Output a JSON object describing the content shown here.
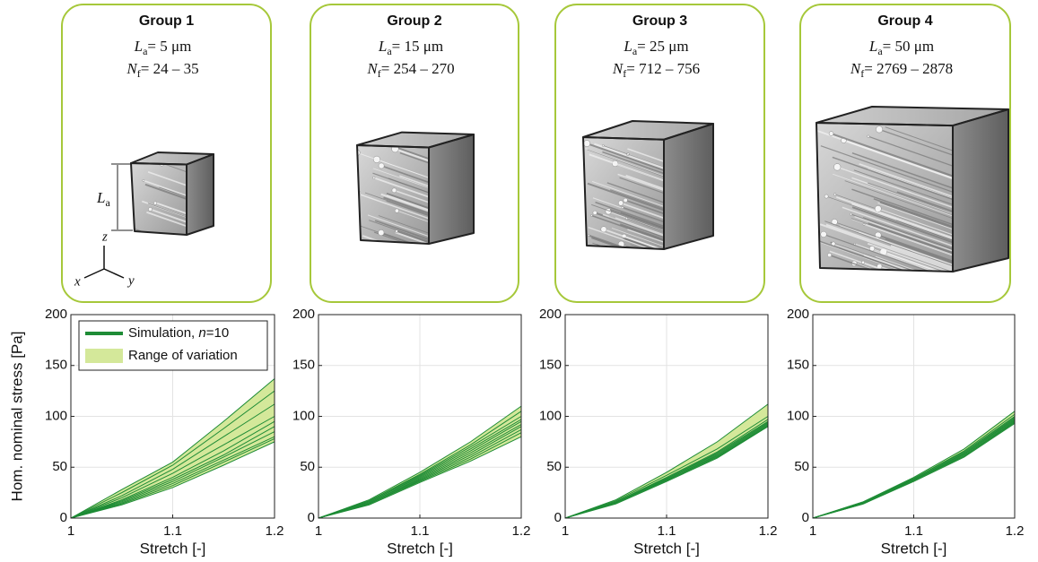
{
  "groups": [
    {
      "title": "Group 1",
      "la_symbol": "L",
      "la_sub": "a",
      "la_value": "= 5 μm",
      "nf_symbol": "N",
      "nf_sub": "f",
      "nf_value": "= 24 – 35"
    },
    {
      "title": "Group 2",
      "la_symbol": "L",
      "la_sub": "a",
      "la_value": "= 15 μm",
      "nf_symbol": "N",
      "nf_sub": "f",
      "nf_value": "= 254 – 270"
    },
    {
      "title": "Group 3",
      "la_symbol": "L",
      "la_sub": "a",
      "la_value": "= 25 μm",
      "nf_symbol": "N",
      "nf_sub": "f",
      "nf_value": "= 712 – 756"
    },
    {
      "title": "Group 4",
      "la_symbol": "L",
      "la_sub": "a",
      "la_value": "= 50 μm",
      "nf_symbol": "N",
      "nf_sub": "f",
      "nf_value": "= 2769 – 2878"
    }
  ],
  "cube_labels": {
    "length_symbol": "L",
    "length_sub": "a",
    "axis_x": "x",
    "axis_y": "y",
    "axis_z": "z"
  },
  "chart_data": [
    {
      "type": "line",
      "ylabel": "Hom. nominal stress [Pa]",
      "xlabel": "Stretch [-]",
      "legend": {
        "simulation": [
          "Simulation, ",
          "n",
          "=10"
        ],
        "range": "Range of variation"
      },
      "line_color": "#1e8c36",
      "band_color": "#d4e89a",
      "xlim": [
        1,
        1.2
      ],
      "xticks": [
        1,
        1.1,
        1.2
      ],
      "ylim": [
        0,
        200
      ],
      "yticks": [
        0,
        50,
        100,
        150,
        200
      ],
      "grid": true,
      "x": [
        1,
        1.05,
        1.1,
        1.15,
        1.2
      ],
      "range": {
        "lower": [
          0,
          13,
          30,
          52,
          75
        ],
        "upper": [
          0,
          28,
          55,
          95,
          137
        ]
      },
      "curves": [
        [
          0,
          28,
          55,
          95,
          137
        ],
        [
          0,
          25,
          52,
          88,
          125
        ],
        [
          0,
          22,
          48,
          80,
          112
        ],
        [
          0,
          20,
          44,
          72,
          100
        ],
        [
          0,
          18,
          40,
          66,
          95
        ],
        [
          0,
          17,
          38,
          62,
          90
        ],
        [
          0,
          16,
          36,
          60,
          85
        ],
        [
          0,
          15,
          34,
          57,
          80
        ],
        [
          0,
          14,
          32,
          55,
          78
        ],
        [
          0,
          13,
          30,
          52,
          75
        ]
      ]
    },
    {
      "type": "line",
      "xlabel": "Stretch [-]",
      "line_color": "#1e8c36",
      "band_color": "#d4e89a",
      "xlim": [
        1,
        1.2
      ],
      "xticks": [
        1,
        1.1,
        1.2
      ],
      "ylim": [
        0,
        200
      ],
      "yticks": [
        0,
        50,
        100,
        150,
        200
      ],
      "grid": true,
      "x": [
        1,
        1.05,
        1.1,
        1.15,
        1.2
      ],
      "range": {
        "lower": [
          0,
          13,
          35,
          56,
          80
        ],
        "upper": [
          0,
          18,
          45,
          75,
          110
        ]
      },
      "curves": [
        [
          0,
          18,
          45,
          75,
          110
        ],
        [
          0,
          17,
          43,
          72,
          105
        ],
        [
          0,
          17,
          42,
          70,
          100
        ],
        [
          0,
          16,
          41,
          68,
          97
        ],
        [
          0,
          16,
          40,
          66,
          95
        ],
        [
          0,
          15,
          39,
          64,
          92
        ],
        [
          0,
          15,
          38,
          62,
          90
        ],
        [
          0,
          14,
          37,
          60,
          87
        ],
        [
          0,
          14,
          36,
          58,
          84
        ],
        [
          0,
          13,
          35,
          56,
          80
        ]
      ]
    },
    {
      "type": "line",
      "xlabel": "Stretch [-]",
      "line_color": "#1e8c36",
      "band_color": "#d4e89a",
      "xlim": [
        1,
        1.2
      ],
      "xticks": [
        1,
        1.1,
        1.2
      ],
      "ylim": [
        0,
        200
      ],
      "yticks": [
        0,
        50,
        100,
        150,
        200
      ],
      "grid": true,
      "x": [
        1,
        1.05,
        1.1,
        1.15,
        1.2
      ],
      "range": {
        "lower": [
          0,
          14,
          36,
          59,
          90
        ],
        "upper": [
          0,
          18,
          45,
          75,
          112
        ]
      },
      "curves": [
        [
          0,
          18,
          45,
          75,
          112
        ],
        [
          0,
          17,
          42,
          68,
          100
        ],
        [
          0,
          16,
          40,
          65,
          97
        ],
        [
          0,
          16,
          39,
          64,
          95
        ],
        [
          0,
          16,
          39,
          63,
          94
        ],
        [
          0,
          15,
          38,
          62,
          93
        ],
        [
          0,
          15,
          38,
          61,
          92
        ],
        [
          0,
          15,
          37,
          60,
          91
        ],
        [
          0,
          15,
          37,
          60,
          90
        ],
        [
          0,
          14,
          36,
          59,
          90
        ]
      ]
    },
    {
      "type": "line",
      "xlabel": "Stretch [-]",
      "line_color": "#1e8c36",
      "band_color": "#d4e89a",
      "xlim": [
        1,
        1.2
      ],
      "xticks": [
        1,
        1.1,
        1.2
      ],
      "ylim": [
        0,
        200
      ],
      "yticks": [
        0,
        50,
        100,
        150,
        200
      ],
      "grid": true,
      "x": [
        1,
        1.05,
        1.1,
        1.15,
        1.2
      ],
      "range": {
        "lower": [
          0,
          14,
          36,
          60,
          93
        ],
        "upper": [
          0,
          16,
          40,
          68,
          105
        ]
      },
      "curves": [
        [
          0,
          16,
          40,
          68,
          105
        ],
        [
          0,
          16,
          39,
          66,
          102
        ],
        [
          0,
          15,
          39,
          65,
          100
        ],
        [
          0,
          15,
          38,
          64,
          99
        ],
        [
          0,
          15,
          38,
          63,
          98
        ],
        [
          0,
          15,
          38,
          63,
          97
        ],
        [
          0,
          15,
          37,
          62,
          96
        ],
        [
          0,
          14,
          37,
          61,
          95
        ],
        [
          0,
          14,
          37,
          61,
          94
        ],
        [
          0,
          14,
          36,
          60,
          93
        ]
      ]
    }
  ]
}
